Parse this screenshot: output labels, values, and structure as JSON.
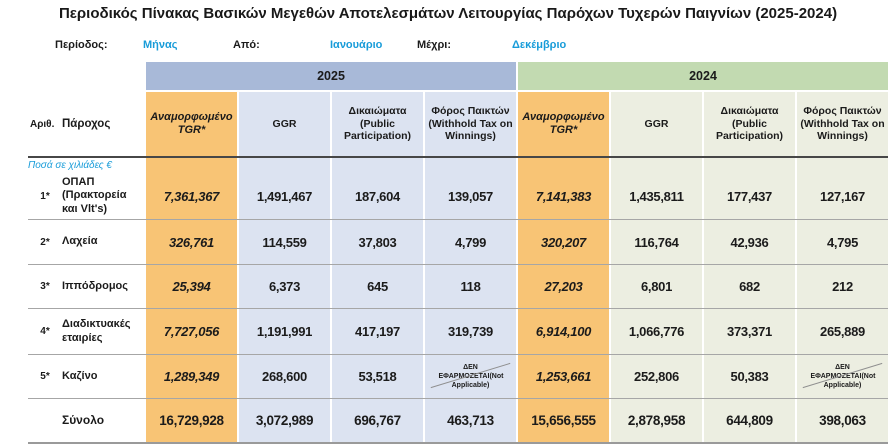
{
  "title": "Περιοδικός Πίνακας Βασικών Μεγεθών Αποτελεσμάτων Λειτουργίας Παρόχων Τυχερών Παιγνίων (2025-2024)",
  "filters": {
    "period_label": "Περίοδος:",
    "period_value": "Μήνας",
    "from_label": "Από:",
    "from_value": "Ιανουάριο",
    "to_label": "Μέχρι:",
    "to_value": "Δεκέμβριο"
  },
  "units_note": "Ποσά σε χιλιάδες €",
  "years": {
    "y2025": "2025",
    "y2024": "2024"
  },
  "header": {
    "num": "Αριθ.",
    "provider": "Πάροχος"
  },
  "columns": [
    "Αναμορφωμένο TGR*",
    "GGR",
    "Δικαιώματα (Public Participation)",
    "Φόρος Παικτών (Withhold Tax on Winnings)"
  ],
  "na_line1": "ΔΕΝ ΕΦΑΡΜΟΖΕΤΑΙ",
  "na_line2": "(Not Applicable)",
  "rows": [
    {
      "num": "1*",
      "provider": "ΟΠΑΠ (Πρακτορεία και Vlt's)",
      "y2025": [
        "7,361,367",
        "1,491,467",
        "187,604",
        "139,057"
      ],
      "y2024": [
        "7,141,383",
        "1,435,811",
        "177,437",
        "127,167"
      ]
    },
    {
      "num": "2*",
      "provider": "Λαχεία",
      "y2025": [
        "326,761",
        "114,559",
        "37,803",
        "4,799"
      ],
      "y2024": [
        "320,207",
        "116,764",
        "42,936",
        "4,795"
      ]
    },
    {
      "num": "3*",
      "provider": "Ιππόδρομος",
      "y2025": [
        "25,394",
        "6,373",
        "645",
        "118"
      ],
      "y2024": [
        "27,203",
        "6,801",
        "682",
        "212"
      ]
    },
    {
      "num": "4*",
      "provider": "Διαδικτυακές εταιρίες",
      "y2025": [
        "7,727,056",
        "1,191,991",
        "417,197",
        "319,739"
      ],
      "y2024": [
        "6,914,100",
        "1,066,776",
        "373,371",
        "265,889"
      ]
    },
    {
      "num": "5*",
      "provider": "Καζίνο",
      "y2025": [
        "1,289,349",
        "268,600",
        "53,518",
        "ΔΕΝ ΕΦΑΡΜΟΖΕΤΑΙ (Not Applicable)"
      ],
      "y2024": [
        "1,253,661",
        "252,806",
        "50,383",
        "ΔΕΝ ΕΦΑΡΜΟΖΕΤΑΙ (Not Applicable)"
      ]
    }
  ],
  "total": {
    "label": "Σύνολο",
    "y2025": [
      "16,729,928",
      "3,072,989",
      "696,767",
      "463,713"
    ],
    "y2024": [
      "15,656,555",
      "2,878,958",
      "644,809",
      "398,063"
    ]
  },
  "colors": {
    "accent_blue": "#189cd9",
    "tgr_orange": "#f8c475",
    "band_2025": "#a8b9d8",
    "band_2024": "#c2dab1",
    "cells_2025": "#dce3f1",
    "cells_2024": "#eceee1"
  },
  "chart_data": {
    "type": "table",
    "title": "Περιοδικός Πίνακας Βασικών Μεγεθών Αποτελεσμάτων Λειτουργίας Παρόχων Τυχερών Παιγνίων (2025-2024)",
    "unit": "χιλιάδες €",
    "column_groups": [
      "2025",
      "2024"
    ],
    "columns_per_group": [
      "Αναμορφωμένο TGR*",
      "GGR",
      "Δικαιώματα (Public Participation)",
      "Φόρος Παικτών (Withhold Tax on Winnings)"
    ],
    "providers": [
      "ΟΠΑΠ (Πρακτορεία και Vlt's)",
      "Λαχεία",
      "Ιππόδρομος",
      "Διαδικτυακές εταιρίες",
      "Καζίνο",
      "Σύνολο"
    ],
    "values_2025": [
      [
        7361367,
        1491467,
        187604,
        139057
      ],
      [
        326761,
        114559,
        37803,
        4799
      ],
      [
        25394,
        6373,
        645,
        118
      ],
      [
        7727056,
        1191991,
        417197,
        319739
      ],
      [
        1289349,
        268600,
        53518,
        null
      ],
      [
        16729928,
        3072989,
        696767,
        463713
      ]
    ],
    "values_2024": [
      [
        7141383,
        1435811,
        177437,
        127167
      ],
      [
        320207,
        116764,
        42936,
        4795
      ],
      [
        27203,
        6801,
        682,
        212
      ],
      [
        6914100,
        1066776,
        373371,
        265889
      ],
      [
        1253661,
        252806,
        50383,
        null
      ],
      [
        15656555,
        2878958,
        644809,
        398063
      ]
    ]
  }
}
